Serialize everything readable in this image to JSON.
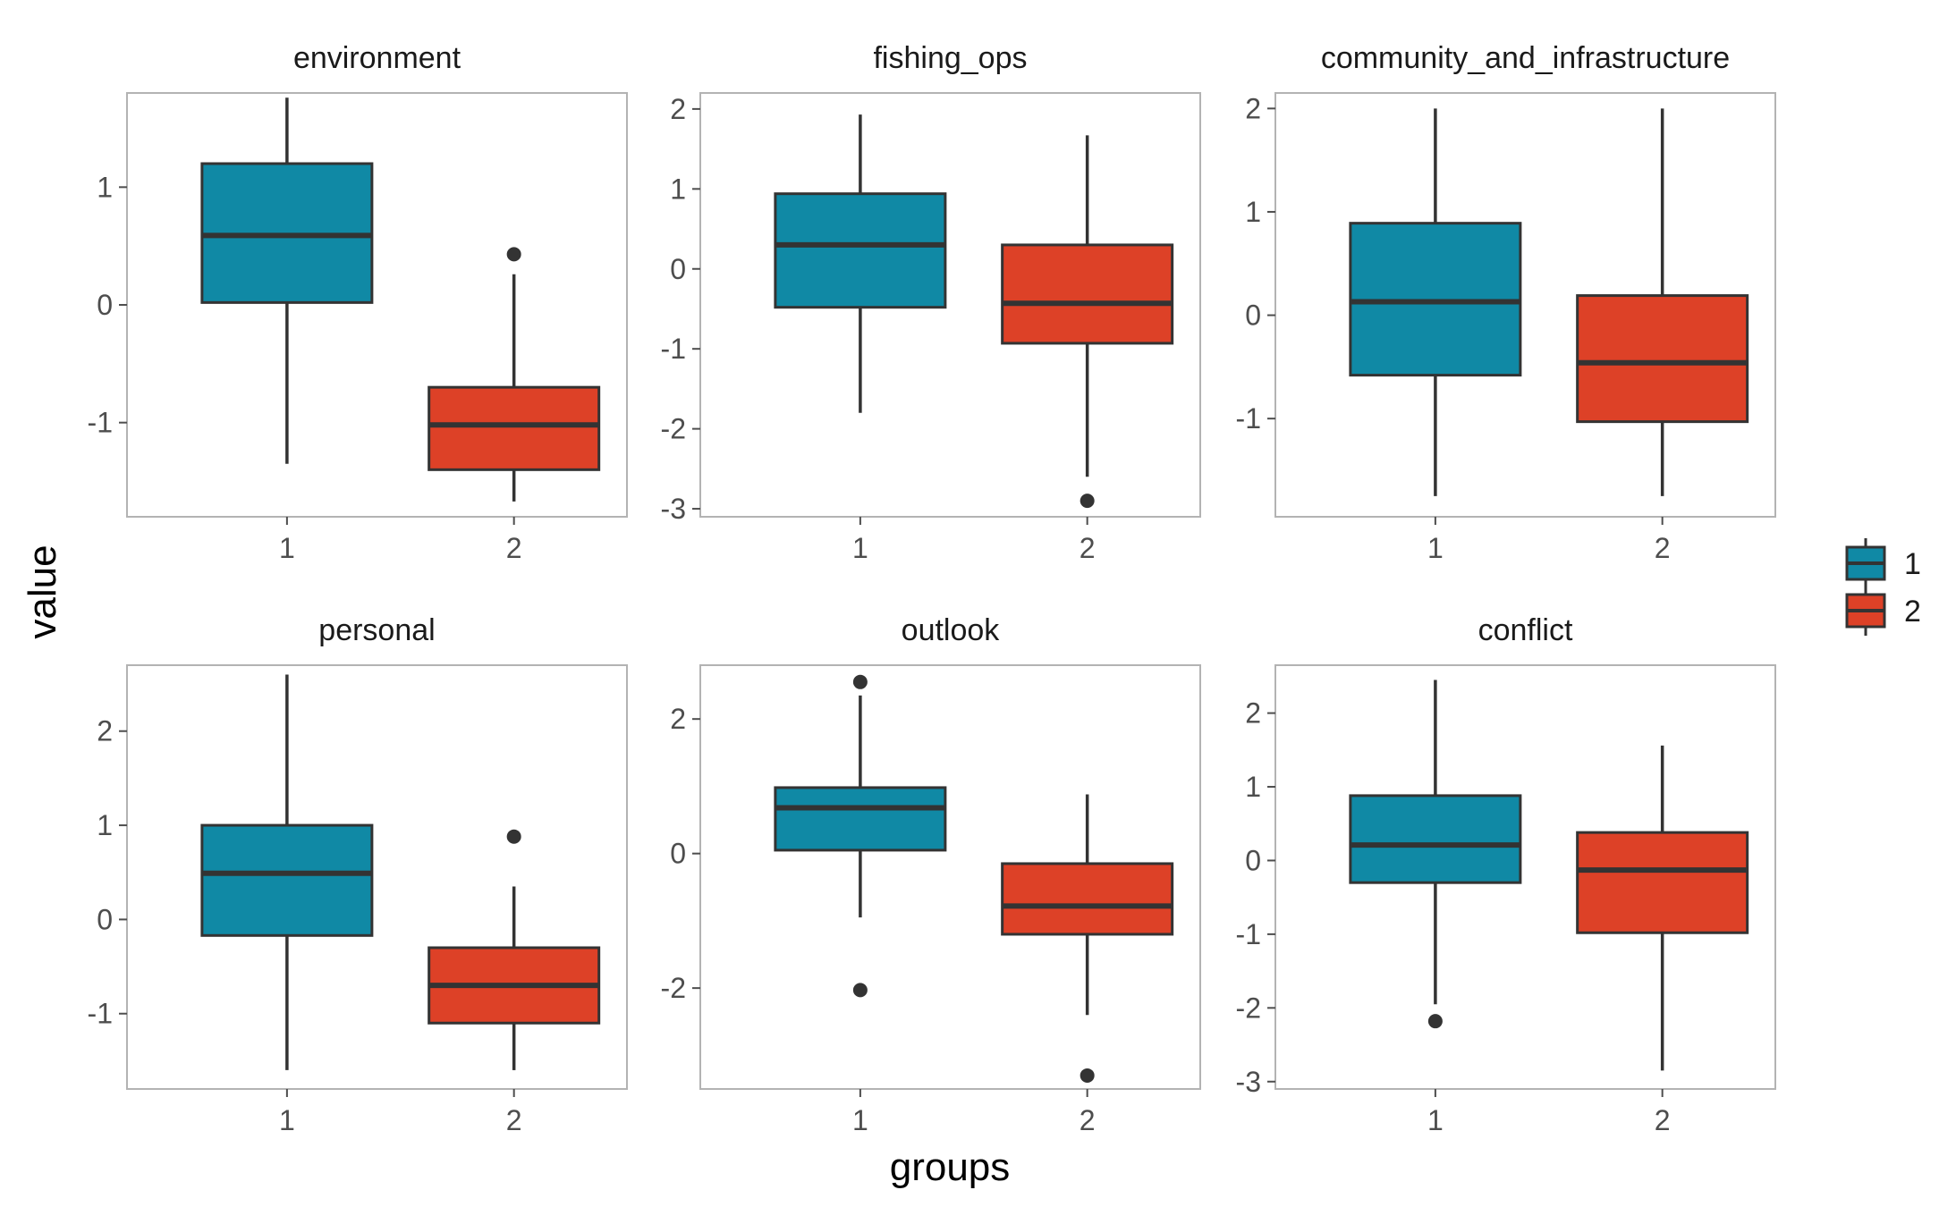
{
  "chart_data": {
    "type": "boxplot",
    "xlabel": "groups",
    "ylabel": "value",
    "categories": [
      "1",
      "2"
    ],
    "colors": {
      "1": "#1089A5",
      "2": "#DD4127"
    },
    "legend": {
      "position": "right",
      "entries": [
        "1",
        "2"
      ]
    },
    "grid": false,
    "panels": [
      {
        "name": "environment",
        "ylim": [
          -1.8,
          1.8
        ],
        "yticks": [
          -1,
          0,
          1
        ],
        "ytick_labels": [
          "-1",
          "0",
          "1"
        ],
        "boxes": [
          {
            "group": "1",
            "whisker_low": -1.35,
            "q1": 0.02,
            "median": 0.59,
            "q3": 1.2,
            "whisker_high": 1.76,
            "outliers": []
          },
          {
            "group": "2",
            "whisker_low": -1.67,
            "q1": -1.4,
            "median": -1.02,
            "q3": -0.7,
            "whisker_high": 0.26,
            "outliers": [
              0.43
            ]
          }
        ]
      },
      {
        "name": "fishing_ops",
        "ylim": [
          -3.1,
          2.2
        ],
        "yticks": [
          -3,
          -2,
          -1,
          0,
          1,
          2
        ],
        "ytick_labels": [
          "-3",
          "-2",
          "-1",
          "0",
          "1",
          "2"
        ],
        "boxes": [
          {
            "group": "1",
            "whisker_low": -1.8,
            "q1": -0.48,
            "median": 0.3,
            "q3": 0.94,
            "whisker_high": 1.93,
            "outliers": []
          },
          {
            "group": "2",
            "whisker_low": -2.6,
            "q1": -0.93,
            "median": -0.43,
            "q3": 0.3,
            "whisker_high": 1.67,
            "outliers": [
              -2.9
            ]
          }
        ]
      },
      {
        "name": "community_and_infrastructure",
        "ylim": [
          -1.95,
          2.15
        ],
        "yticks": [
          -1,
          0,
          1,
          2
        ],
        "ytick_labels": [
          "-1",
          "0",
          "1",
          "2"
        ],
        "boxes": [
          {
            "group": "1",
            "whisker_low": -1.75,
            "q1": -0.58,
            "median": 0.13,
            "q3": 0.89,
            "whisker_high": 2.0,
            "outliers": []
          },
          {
            "group": "2",
            "whisker_low": -1.75,
            "q1": -1.03,
            "median": -0.46,
            "q3": 0.19,
            "whisker_high": 2.0,
            "outliers": []
          }
        ]
      },
      {
        "name": "personal",
        "ylim": [
          -1.8,
          2.7
        ],
        "yticks": [
          -1,
          0,
          1,
          2
        ],
        "ytick_labels": [
          "-1",
          "0",
          "1",
          "2"
        ],
        "boxes": [
          {
            "group": "1",
            "whisker_low": -1.6,
            "q1": -0.17,
            "median": 0.49,
            "q3": 1.0,
            "whisker_high": 2.6,
            "outliers": []
          },
          {
            "group": "2",
            "whisker_low": -1.6,
            "q1": -1.1,
            "median": -0.7,
            "q3": -0.3,
            "whisker_high": 0.35,
            "outliers": [
              0.88
            ]
          }
        ]
      },
      {
        "name": "outlook",
        "ylim": [
          -3.5,
          2.8
        ],
        "yticks": [
          -2,
          0,
          2
        ],
        "ytick_labels": [
          "-2",
          "0",
          "2"
        ],
        "boxes": [
          {
            "group": "1",
            "whisker_low": -0.95,
            "q1": 0.05,
            "median": 0.68,
            "q3": 0.98,
            "whisker_high": 2.35,
            "outliers": [
              2.55,
              -2.03
            ]
          },
          {
            "group": "2",
            "whisker_low": -2.4,
            "q1": -1.2,
            "median": -0.78,
            "q3": -0.15,
            "whisker_high": 0.88,
            "outliers": [
              -3.3
            ]
          }
        ]
      },
      {
        "name": "conflict",
        "ylim": [
          -3.1,
          2.65
        ],
        "yticks": [
          -3,
          -2,
          -1,
          0,
          1,
          2
        ],
        "ytick_labels": [
          "-3",
          "-2",
          "-1",
          "0",
          "1",
          "2"
        ],
        "boxes": [
          {
            "group": "1",
            "whisker_low": -1.95,
            "q1": -0.3,
            "median": 0.21,
            "q3": 0.88,
            "whisker_high": 2.45,
            "outliers": [
              -2.18
            ]
          },
          {
            "group": "2",
            "whisker_low": -2.85,
            "q1": -0.98,
            "median": -0.13,
            "q3": 0.38,
            "whisker_high": 1.56,
            "outliers": []
          }
        ]
      }
    ]
  }
}
